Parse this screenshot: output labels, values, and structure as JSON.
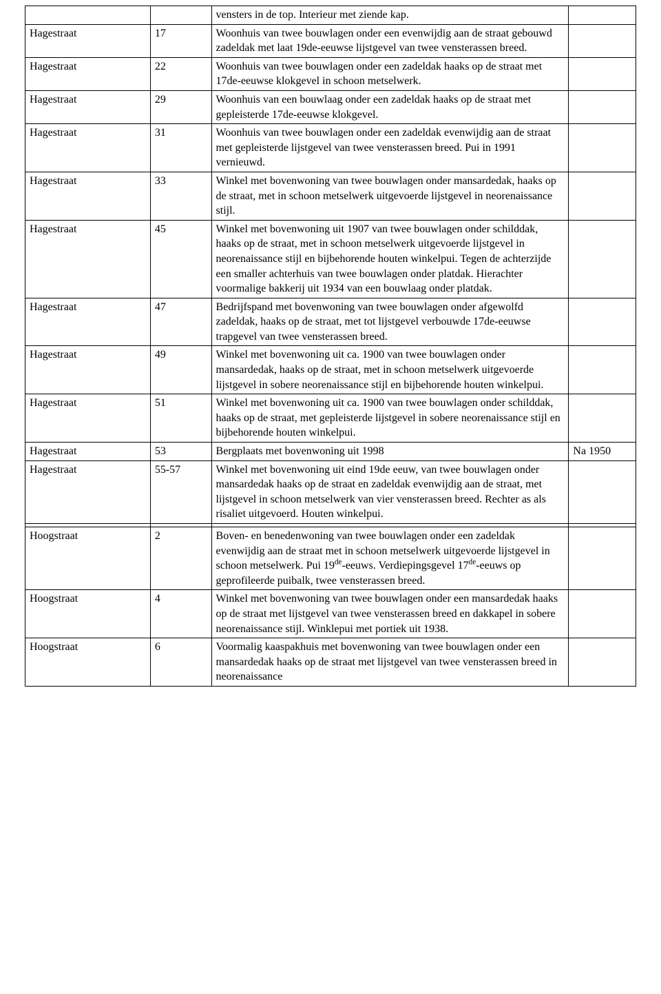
{
  "rows": [
    {
      "street": "",
      "num": "",
      "desc": "vensters in de top. Interieur met ziende kap.",
      "note": ""
    },
    {
      "street": "Hagestraat",
      "num": "17",
      "desc": "Woonhuis van twee bouwlagen onder een evenwijdig aan de straat gebouwd zadeldak met laat 19de-eeuwse lijstgevel van twee vensterassen breed.",
      "note": ""
    },
    {
      "street": "Hagestraat",
      "num": "22",
      "desc": "Woonhuis van twee bouwlagen onder een zadeldak haaks op de straat met 17de-eeuwse klokgevel in schoon metselwerk.",
      "note": ""
    },
    {
      "street": "Hagestraat",
      "num": "29",
      "desc": "Woonhuis van een bouwlaag onder een zadeldak haaks op de straat met gepleisterde 17de-eeuwse klokgevel.",
      "note": ""
    },
    {
      "street": "Hagestraat",
      "num": "31",
      "desc": "Woonhuis van twee bouwlagen onder een zadeldak evenwijdig aan de straat met gepleisterde lijstgevel van twee vensterassen breed. Pui in 1991 vernieuwd.",
      "note": ""
    },
    {
      "street": "Hagestraat",
      "num": "33",
      "desc": "Winkel met bovenwoning van twee bouwlagen onder mansardedak, haaks op de straat, met in schoon metselwerk uitgevoerde lijstgevel in neorenaissance stijl.",
      "note": ""
    },
    {
      "street": "Hagestraat",
      "num": "45",
      "desc": "Winkel met bovenwoning uit 1907 van twee bouwlagen onder schilddak, haaks op de straat, met in schoon metselwerk uitgevoerde lijstgevel in neorenaissance stijl en bijbehorende houten winkelpui. Tegen de achterzijde een smaller achterhuis van twee bouwlagen onder platdak. Hierachter voormalige bakkerij uit 1934 van een bouwlaag onder platdak.",
      "note": ""
    },
    {
      "street": "Hagestraat",
      "num": "47",
      "desc": "Bedrijfspand met bovenwoning van twee bouwlagen onder afgewolfd zadeldak, haaks op de straat, met tot lijstgevel verbouwde 17de-eeuwse trapgevel van twee vensterassen breed.",
      "note": ""
    },
    {
      "street": "Hagestraat",
      "num": "49",
      "desc": "Winkel met bovenwoning uit ca. 1900 van twee bouwlagen onder mansardedak, haaks op de straat, met in schoon metselwerk uitgevoerde lijstgevel in sobere neorenaissance stijl en bijbehorende houten winkelpui.",
      "note": ""
    },
    {
      "street": "Hagestraat",
      "num": "51",
      "desc": "Winkel met bovenwoning uit ca. 1900 van twee bouwlagen onder schilddak, haaks op de straat, met gepleisterde lijstgevel in sobere neorenaissance stijl en bijbehorende houten winkelpui.",
      "note": ""
    },
    {
      "street": "Hagestraat",
      "num": "53",
      "desc": "Bergplaats met bovenwoning uit 1998",
      "note": "Na 1950"
    },
    {
      "street": "Hagestraat",
      "num": "55-57",
      "desc": "Winkel met bovenwoning uit eind 19de eeuw, van twee bouwlagen onder mansardedak haaks op de straat en zadeldak evenwijdig aan de straat, met lijstgevel in schoon metselwerk van vier vensterassen breed. Rechter as als risaliet uitgevoerd. Houten winkelpui.",
      "note": ""
    },
    {
      "street": "",
      "num": "",
      "desc": "",
      "note": ""
    },
    {
      "street": "Hoogstraat",
      "num": "2",
      "desc_html": "Boven- en benedenwoning van twee bouwlagen onder een zadeldak evenwijdig aan de straat met in schoon metselwerk uitgevoerde lijstgevel in schoon metselwerk. Pui 19<sup>de</sup>-eeuws. Verdiepingsgevel 17<sup>de</sup>-eeuws op geprofileerde puibalk, twee vensterassen breed.",
      "note": ""
    },
    {
      "street": "Hoogstraat",
      "num": "4",
      "desc": "Winkel met bovenwoning van twee bouwlagen onder een mansardedak haaks op de straat met lijstgevel van twee vensterassen breed en dakkapel in sobere neorenaissance stijl. Winklepui met portiek uit 1938.",
      "note": ""
    },
    {
      "street": "Hoogstraat",
      "num": "6",
      "desc": "Voormalig kaaspakhuis met bovenwoning van twee bouwlagen onder een mansardedak haaks op de straat met lijstgevel van twee vensterassen breed in neorenaissance",
      "note": ""
    }
  ]
}
